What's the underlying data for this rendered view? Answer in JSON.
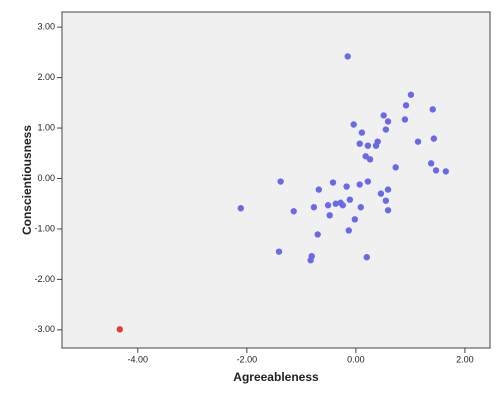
{
  "chart_data": {
    "type": "scatter",
    "xlabel": "Agreeableness",
    "ylabel": "Conscientiousness",
    "xlim": [
      -5.39,
      2.46
    ],
    "ylim": [
      -3.36,
      3.3
    ],
    "xticks": [
      {
        "value": -4,
        "label": "-4.00"
      },
      {
        "value": -2,
        "label": "-2.00"
      },
      {
        "value": 0,
        "label": "0.00"
      },
      {
        "value": 2,
        "label": "2.00"
      }
    ],
    "yticks": [
      {
        "value": -3,
        "label": "-3.00"
      },
      {
        "value": -2,
        "label": "-2.00"
      },
      {
        "value": -1,
        "label": "-1.00"
      },
      {
        "value": 0,
        "label": "0.00"
      },
      {
        "value": 1,
        "label": "1.00"
      },
      {
        "value": 2,
        "label": "2.00"
      },
      {
        "value": 3,
        "label": "3.00"
      }
    ],
    "series": [
      {
        "color": "#6a6ae8",
        "x": [
          -0.15,
          1.01,
          0.92,
          0.51,
          0.9,
          1.41,
          0.59,
          -0.04,
          0.11,
          0.55,
          1.43,
          1.14,
          0.4,
          0.37,
          0.07,
          0.22,
          0.18,
          0.26,
          0.73,
          1.38,
          1.47,
          1.65,
          -1.38,
          -0.42,
          0.22,
          0.07,
          -0.17,
          -0.68,
          0.59,
          0.46,
          0.55,
          -0.11,
          -0.28,
          -0.37,
          -0.24,
          -0.51,
          -0.77,
          0.09,
          0.59,
          -2.11,
          -1.14,
          -0.48,
          -0.02,
          -0.13,
          -0.7,
          -1.41,
          -0.81,
          -0.83,
          0.2
        ],
        "values": [
          2.42,
          1.66,
          1.45,
          1.25,
          1.17,
          1.37,
          1.13,
          1.07,
          0.91,
          0.97,
          0.79,
          0.73,
          0.73,
          0.65,
          0.69,
          0.65,
          0.44,
          0.38,
          0.22,
          0.3,
          0.16,
          0.14,
          -0.06,
          -0.08,
          -0.06,
          -0.12,
          -0.16,
          -0.22,
          -0.22,
          -0.3,
          -0.44,
          -0.42,
          -0.48,
          -0.5,
          -0.53,
          -0.53,
          -0.57,
          -0.57,
          -0.63,
          -0.59,
          -0.65,
          -0.73,
          -0.81,
          -1.03,
          -1.11,
          -1.45,
          -1.54,
          -1.62,
          -1.56
        ]
      },
      {
        "color": "#e03c3c",
        "x": [
          -4.33
        ],
        "values": [
          -2.99
        ]
      }
    ]
  }
}
